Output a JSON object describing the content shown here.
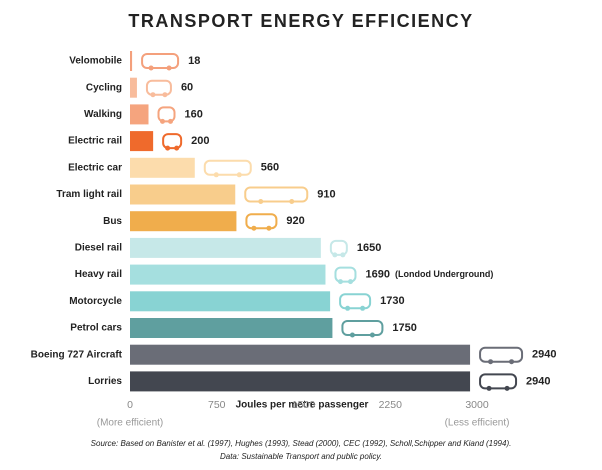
{
  "chart_data": {
    "type": "hbar",
    "title": "TRANSPORT ENERGY EFFICIENCY",
    "categories": [
      "Velomobile",
      "Cycling",
      "Walking",
      "Electric rail",
      "Electric car",
      "Tram light rail",
      "Bus",
      "Diesel rail",
      "Heavy rail",
      "Motorcycle",
      "Petrol cars",
      "Boeing 727 Aircraft",
      "Lorries"
    ],
    "values": [
      18,
      60,
      160,
      200,
      560,
      910,
      920,
      1650,
      1690,
      1730,
      1750,
      2940,
      2940
    ],
    "colors": [
      "#f4a07c",
      "#f8bc9c",
      "#f5a47e",
      "#ef6a2c",
      "#fcdcac",
      "#f8cd8c",
      "#f0ad4c",
      "#c6e8e8",
      "#a5dfdf",
      "#88d3d3",
      "#5f9f9f",
      "#6a6d77",
      "#434750"
    ],
    "annotation": "(Londod Underground)",
    "xlim": [
      0,
      3000
    ],
    "xticks": [
      0,
      750,
      1500,
      2250,
      3000
    ],
    "x_label": "Joules per metre passenger",
    "left_note": "(More efficient)",
    "right_note": "(Less efficient)",
    "source": [
      "Source: Based on Banister et al. (1997), Hughes (1993), Stead (2000), CEC (1992), Scholl,Schipper and Kiand (1994).",
      "Data: Sustainable Transport and public policy."
    ]
  }
}
